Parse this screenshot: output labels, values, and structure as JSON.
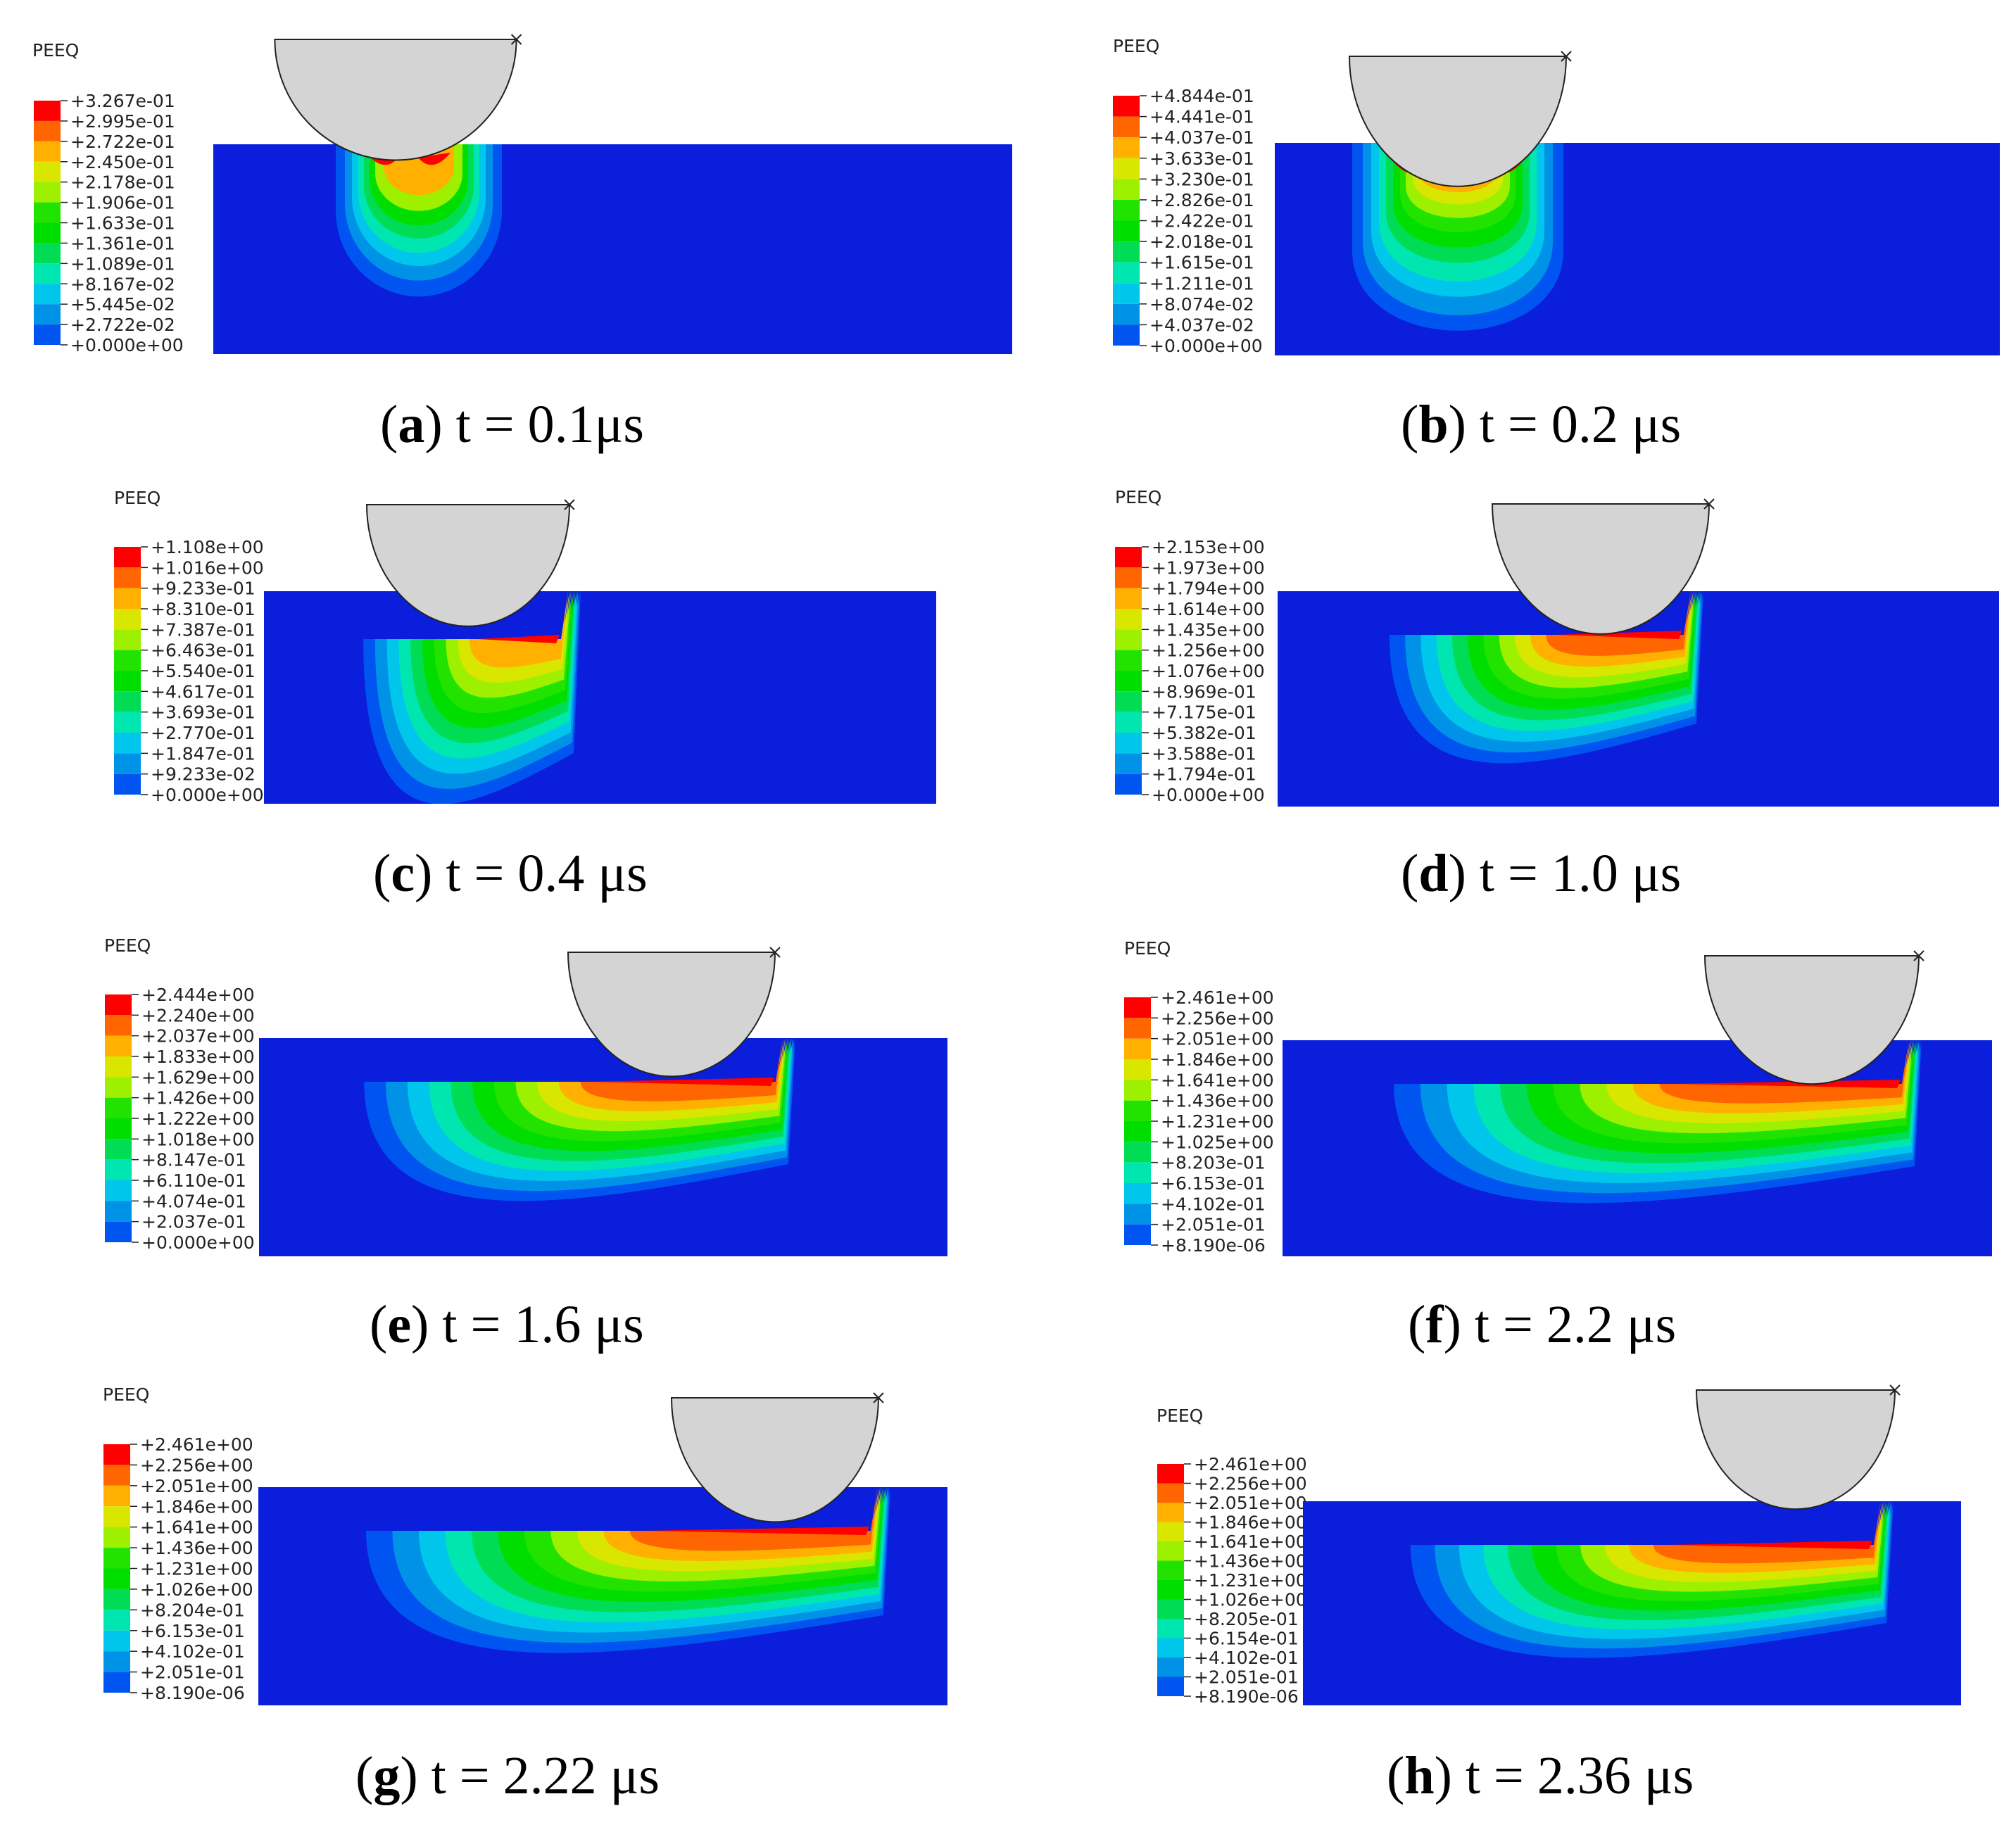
{
  "legend_title": "PEEQ",
  "colormap": [
    "#0000ff",
    "#0055f0",
    "#0092e6",
    "#00c6ec",
    "#00e6b0",
    "#00dd55",
    "#00de00",
    "#22e300",
    "#9cf000",
    "#d8e600",
    "#ffb000",
    "#ff6500",
    "#ff0000"
  ],
  "indenter_color": "#d4d4d4",
  "substrate_color": "#0a1edc",
  "panels": [
    {
      "letter": "a",
      "caption_rest": ") t = 0.1μs",
      "labels": [
        "+3.267e-01",
        "+2.995e-01",
        "+2.722e-01",
        "+2.450e-01",
        "+2.178e-01",
        "+1.906e-01",
        "+1.633e-01",
        "+1.361e-01",
        "+1.089e-01",
        "+8.167e-02",
        "+5.445e-02",
        "+2.722e-02",
        "+0.000e+00"
      ]
    },
    {
      "letter": "b",
      "caption_rest": ") t = 0.2 μs",
      "labels": [
        "+4.844e-01",
        "+4.441e-01",
        "+4.037e-01",
        "+3.633e-01",
        "+3.230e-01",
        "+2.826e-01",
        "+2.422e-01",
        "+2.018e-01",
        "+1.615e-01",
        "+1.211e-01",
        "+8.074e-02",
        "+4.037e-02",
        "+0.000e+00"
      ]
    },
    {
      "letter": "c",
      "caption_rest": ") t = 0.4 μs",
      "labels": [
        "+1.108e+00",
        "+1.016e+00",
        "+9.233e-01",
        "+8.310e-01",
        "+7.387e-01",
        "+6.463e-01",
        "+5.540e-01",
        "+4.617e-01",
        "+3.693e-01",
        "+2.770e-01",
        "+1.847e-01",
        "+9.233e-02",
        "+0.000e+00"
      ]
    },
    {
      "letter": "d",
      "caption_rest": ") t = 1.0 μs",
      "labels": [
        "+2.153e+00",
        "+1.973e+00",
        "+1.794e+00",
        "+1.614e+00",
        "+1.435e+00",
        "+1.256e+00",
        "+1.076e+00",
        "+8.969e-01",
        "+7.175e-01",
        "+5.382e-01",
        "+3.588e-01",
        "+1.794e-01",
        "+0.000e+00"
      ]
    },
    {
      "letter": "e",
      "caption_rest": ") t = 1.6 μs",
      "labels": [
        "+2.444e+00",
        "+2.240e+00",
        "+2.037e+00",
        "+1.833e+00",
        "+1.629e+00",
        "+1.426e+00",
        "+1.222e+00",
        "+1.018e+00",
        "+8.147e-01",
        "+6.110e-01",
        "+4.074e-01",
        "+2.037e-01",
        "+0.000e+00"
      ]
    },
    {
      "letter": "f",
      "caption_rest": ") t = 2.2 μs",
      "labels": [
        "+2.461e+00",
        "+2.256e+00",
        "+2.051e+00",
        "+1.846e+00",
        "+1.641e+00",
        "+1.436e+00",
        "+1.231e+00",
        "+1.025e+00",
        "+8.203e-01",
        "+6.153e-01",
        "+4.102e-01",
        "+2.051e-01",
        "+8.190e-06"
      ]
    },
    {
      "letter": "g",
      "caption_rest": ") t = 2.22 μs",
      "labels": [
        "+2.461e+00",
        "+2.256e+00",
        "+2.051e+00",
        "+1.846e+00",
        "+1.641e+00",
        "+1.436e+00",
        "+1.231e+00",
        "+1.026e+00",
        "+8.204e-01",
        "+6.153e-01",
        "+4.102e-01",
        "+2.051e-01",
        "+8.190e-06"
      ]
    },
    {
      "letter": "h",
      "caption_rest": ") t = 2.36 μs",
      "labels": [
        "+2.461e+00",
        "+2.256e+00",
        "+2.051e+00",
        "+1.846e+00",
        "+1.641e+00",
        "+1.436e+00",
        "+1.231e+00",
        "+1.026e+00",
        "+8.205e-01",
        "+6.154e-01",
        "+4.102e-01",
        "+2.051e-01",
        "+8.190e-06"
      ]
    }
  ]
}
